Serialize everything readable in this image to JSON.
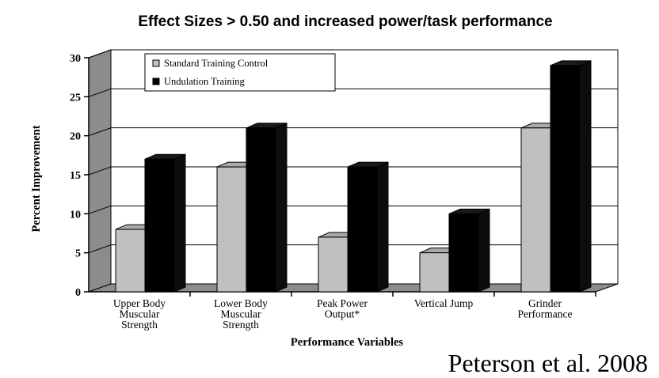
{
  "chart_data": {
    "type": "bar",
    "title": "Effect Sizes > 0.50 and increased power/task performance",
    "xlabel": "Performance Variables",
    "ylabel": "Percent Improvement",
    "ylim": [
      0,
      30
    ],
    "yticks": [
      "0",
      "5",
      "10",
      "15",
      "20",
      "25",
      "30"
    ],
    "categories": [
      [
        "Upper Body",
        "Muscular",
        "Strength"
      ],
      [
        "Lower Body",
        "Muscular",
        "Strength"
      ],
      [
        "Peak Power",
        "Output*"
      ],
      [
        "Vertical Jump"
      ],
      [
        "Grinder",
        "Performance"
      ]
    ],
    "series": [
      {
        "name": "Standard Training Control",
        "color": "#c0c0c0",
        "values": [
          8,
          16,
          7,
          5,
          21
        ]
      },
      {
        "name": "Undulation Training",
        "color": "#000000",
        "values": [
          17,
          21,
          16,
          10,
          29
        ]
      }
    ],
    "grid": true,
    "legend_position": "top-left",
    "style": "3d"
  },
  "citation": "Peterson et al. 2008"
}
